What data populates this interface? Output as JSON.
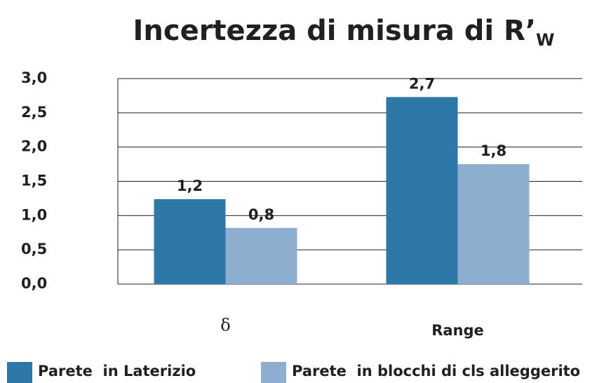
{
  "chart_data": {
    "type": "bar",
    "title": "Incertezza di misura di R’",
    "title_subscript": "W",
    "categories": [
      "δ",
      "Range"
    ],
    "series": [
      {
        "name": "Parete  in Laterizio",
        "color": "#2e78a8",
        "values": [
          1.24,
          2.73
        ],
        "value_labels": [
          "1,2",
          "2,7"
        ]
      },
      {
        "name": "Parete  in blocchi di cls alleggerito",
        "color": "#8eaed0",
        "values": [
          0.82,
          1.75
        ],
        "value_labels": [
          "0,8",
          "1,8"
        ]
      }
    ],
    "ylim": [
      0,
      3
    ],
    "yticks": [
      {
        "value": 0,
        "label": "0,0"
      },
      {
        "value": 0.5,
        "label": "0,5"
      },
      {
        "value": 1,
        "label": "1,0"
      },
      {
        "value": 1.5,
        "label": "1,5"
      },
      {
        "value": 2,
        "label": "2,0"
      },
      {
        "value": 2.5,
        "label": "2,5"
      },
      {
        "value": 3,
        "label": "3,0"
      }
    ],
    "grid": true,
    "legend": "bottom"
  }
}
